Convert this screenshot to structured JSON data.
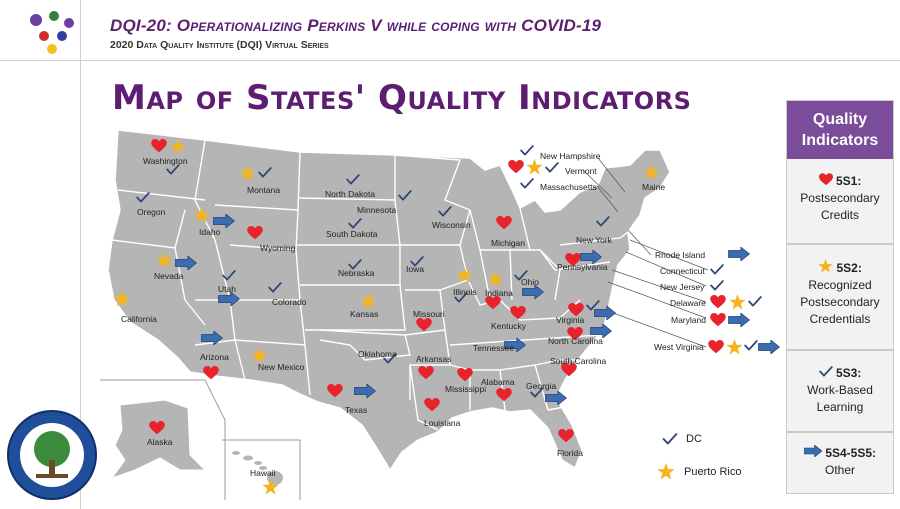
{
  "header": {
    "title": "DQI-20: Operationalizing Perkins V while coping with COVID-19",
    "subtitle": "2020 Data Quality Institute (DQI) Virtual Series"
  },
  "main_title": "Map of States' Quality Indicators",
  "legend": {
    "heading": "Quality Indicators",
    "items": [
      {
        "code": "5S1:",
        "desc": "Postsecondary Credits",
        "icon": "heart-icon",
        "color": "#e8232b"
      },
      {
        "code": "5S2:",
        "desc": "Recognized Postsecondary Credentials",
        "icon": "star-icon",
        "color": "#f4b51c"
      },
      {
        "code": "5S3:",
        "desc": "Work-Based Learning",
        "icon": "check-icon",
        "color": "#2f4a76"
      },
      {
        "code": "5S4-5S5:",
        "desc": "Other",
        "icon": "arrow-icon",
        "color": "#3b6db0"
      }
    ]
  },
  "states": [
    {
      "name": "Washington"
    },
    {
      "name": "Oregon"
    },
    {
      "name": "California"
    },
    {
      "name": "Idaho"
    },
    {
      "name": "Nevada"
    },
    {
      "name": "Montana"
    },
    {
      "name": "Wyoming"
    },
    {
      "name": "Utah"
    },
    {
      "name": "Colorado"
    },
    {
      "name": "Arizona"
    },
    {
      "name": "New Mexico"
    },
    {
      "name": "North Dakota"
    },
    {
      "name": "South Dakota"
    },
    {
      "name": "Nebraska"
    },
    {
      "name": "Kansas"
    },
    {
      "name": "Oklahoma"
    },
    {
      "name": "Texas"
    },
    {
      "name": "Minnesota"
    },
    {
      "name": "Iowa"
    },
    {
      "name": "Missouri"
    },
    {
      "name": "Arkansas"
    },
    {
      "name": "Louisiana"
    },
    {
      "name": "Wisconsin"
    },
    {
      "name": "Illinois"
    },
    {
      "name": "Michigan"
    },
    {
      "name": "Indiana"
    },
    {
      "name": "Ohio"
    },
    {
      "name": "Kentucky"
    },
    {
      "name": "Tennessee"
    },
    {
      "name": "Mississippi"
    },
    {
      "name": "Alabama"
    },
    {
      "name": "Georgia"
    },
    {
      "name": "Florida"
    },
    {
      "name": "South Carolina"
    },
    {
      "name": "North Carolina"
    },
    {
      "name": "Virginia"
    },
    {
      "name": "West Virginia"
    },
    {
      "name": "Pennsylvania"
    },
    {
      "name": "New York"
    },
    {
      "name": "Maine"
    },
    {
      "name": "New Hampshire"
    },
    {
      "name": "Vermont"
    },
    {
      "name": "Massachusetts"
    },
    {
      "name": "Rhode Island"
    },
    {
      "name": "Connecticut"
    },
    {
      "name": "New Jersey"
    },
    {
      "name": "Delaware"
    },
    {
      "name": "Maryland"
    },
    {
      "name": "Alaska"
    },
    {
      "name": "Hawaii"
    }
  ],
  "extras": [
    {
      "name": "DC",
      "icon": "check-icon"
    },
    {
      "name": "Puerto Rico",
      "icon": "star-icon"
    }
  ],
  "seal": {
    "text": "Department of Education — United States of America"
  }
}
